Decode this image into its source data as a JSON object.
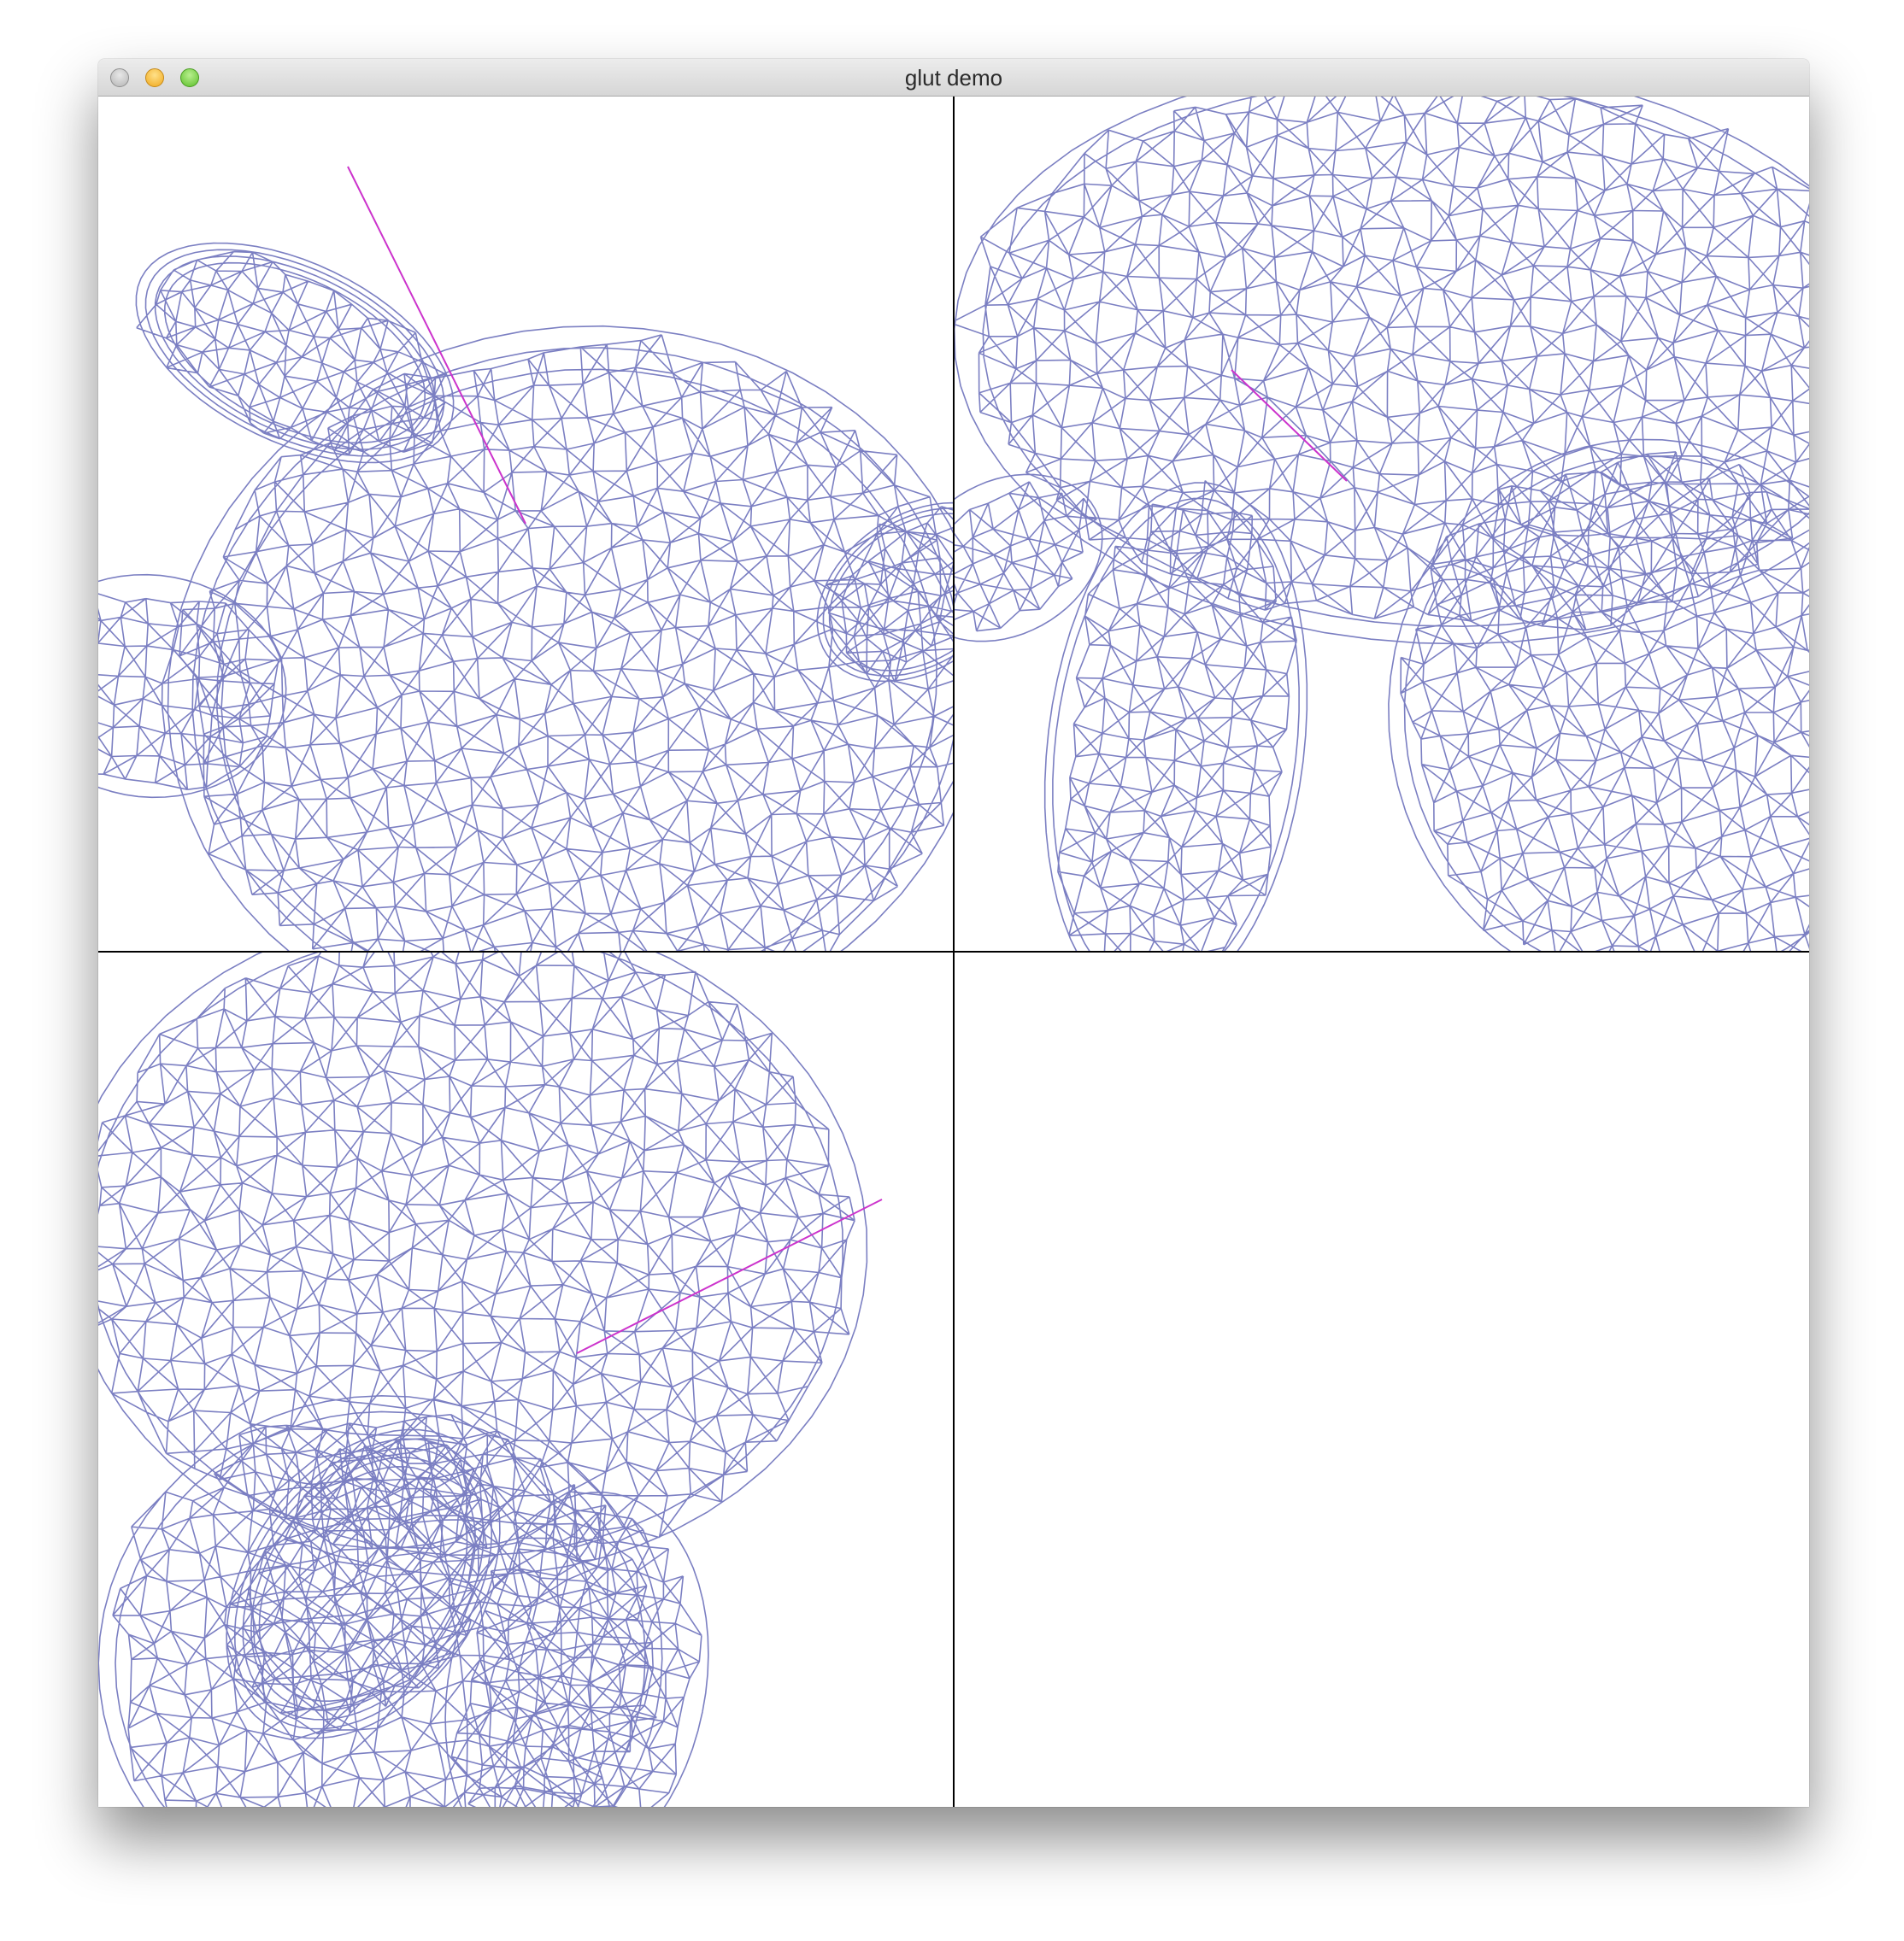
{
  "window": {
    "title": "glut demo"
  },
  "colors": {
    "mesh": "#7b7fc2",
    "axis": "#cc33cc",
    "divider": "#000000",
    "background": "#ffffff"
  },
  "viewports": [
    {
      "name": "top-left",
      "content": "wireframe-mesh"
    },
    {
      "name": "top-right",
      "content": "wireframe-mesh"
    },
    {
      "name": "bottom-left",
      "content": "wireframe-mesh"
    },
    {
      "name": "bottom-right",
      "content": "empty"
    }
  ]
}
